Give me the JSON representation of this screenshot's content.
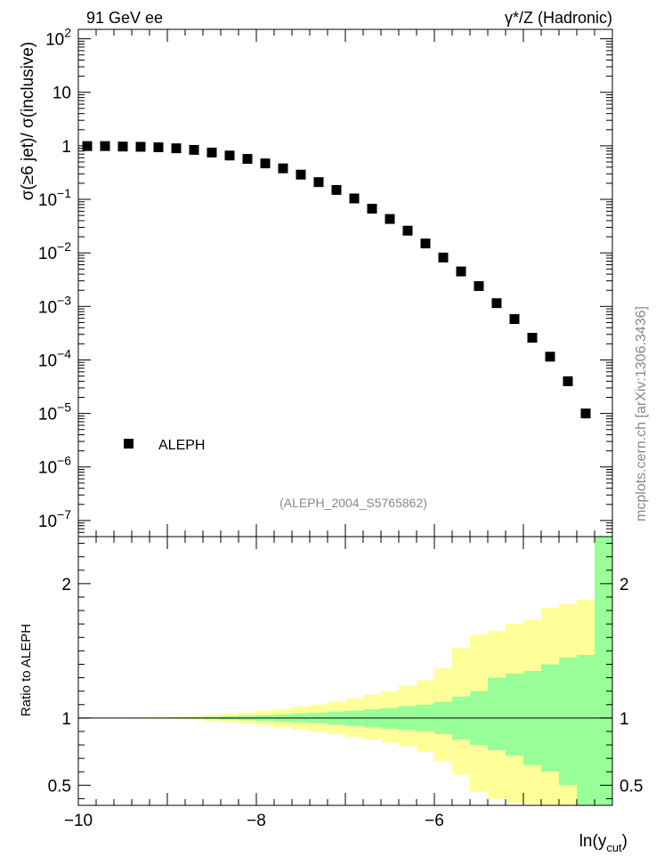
{
  "header": {
    "left_label": "91 GeV ee",
    "right_label": "γ*/Z (Hadronic)"
  },
  "side_label": "mcplots.cern.ch [arXiv:1306.3436]",
  "analysis_ref": "(ALEPH_2004_S5765862)",
  "chart_data": [
    {
      "type": "scatter",
      "panel": "main",
      "ylabel": "σ(≥6 jet)/ σ(inclusive)",
      "yscale": "log",
      "ylim": [
        5e-08,
        150
      ],
      "xlim": [
        -10.0,
        -4.0
      ],
      "ytick_labels": [
        {
          "base": "10",
          "exp": "−7",
          "value": 1e-07
        },
        {
          "base": "10",
          "exp": "−6",
          "value": 1e-06
        },
        {
          "base": "10",
          "exp": "−5",
          "value": 1e-05
        },
        {
          "base": "10",
          "exp": "−4",
          "value": 0.0001
        },
        {
          "base": "10",
          "exp": "−3",
          "value": 0.001
        },
        {
          "base": "10",
          "exp": "−2",
          "value": 0.01
        },
        {
          "base": "10",
          "exp": "−1",
          "value": 0.1
        },
        {
          "base": "1",
          "exp": "",
          "value": 1
        },
        {
          "base": "10",
          "exp": "",
          "value": 10
        },
        {
          "base": "10",
          "exp": "2",
          "value": 100
        }
      ],
      "legend": {
        "position": "bottom-left",
        "entries": [
          "ALEPH"
        ]
      },
      "series": [
        {
          "name": "ALEPH",
          "marker": "square",
          "color": "#000000",
          "x": [
            -9.9,
            -9.7,
            -9.5,
            -9.3,
            -9.1,
            -8.9,
            -8.7,
            -8.5,
            -8.3,
            -8.1,
            -7.9,
            -7.7,
            -7.5,
            -7.3,
            -7.1,
            -6.9,
            -6.7,
            -6.5,
            -6.3,
            -6.1,
            -5.9,
            -5.7,
            -5.5,
            -5.3,
            -5.1,
            -4.9,
            -4.7,
            -4.5,
            -4.3
          ],
          "y": [
            0.99,
            0.99,
            0.97,
            0.96,
            0.94,
            0.9,
            0.84,
            0.75,
            0.66,
            0.57,
            0.47,
            0.38,
            0.29,
            0.21,
            0.15,
            0.104,
            0.067,
            0.043,
            0.026,
            0.015,
            0.0082,
            0.0045,
            0.0024,
            0.00115,
            0.00058,
            0.00026,
            0.000115,
            4e-05,
            1e-05
          ]
        }
      ]
    },
    {
      "type": "area",
      "panel": "ratio",
      "ylabel": "Ratio to ALEPH",
      "xlabel": "ln(y_cut)",
      "xlabel_base": "ln(y",
      "xlabel_sub": "cut",
      "xlabel_close": ")",
      "ylim": [
        0.35,
        2.35
      ],
      "xlim": [
        -10.0,
        -4.0
      ],
      "xtick_labels": [
        {
          "label": "−10",
          "value": -10
        },
        {
          "label": "−8",
          "value": -8
        },
        {
          "label": "−6",
          "value": -6
        }
      ],
      "ytick_labels": [
        {
          "label": "0.5",
          "value": 0.5
        },
        {
          "label": "1",
          "value": 1
        },
        {
          "label": "2",
          "value": 2
        }
      ],
      "reference_line": 1,
      "bin_edges": [
        -10.0,
        -9.8,
        -9.6,
        -9.4,
        -9.2,
        -9.0,
        -8.8,
        -8.6,
        -8.4,
        -8.2,
        -8.0,
        -7.8,
        -7.6,
        -7.4,
        -7.2,
        -7.0,
        -6.8,
        -6.6,
        -6.4,
        -6.2,
        -6.0,
        -5.8,
        -5.6,
        -5.4,
        -5.2,
        -5.0,
        -4.8,
        -4.6,
        -4.4,
        -4.2
      ],
      "bands": [
        {
          "name": "total",
          "color": "#ffff99",
          "upper": [
            1.002,
            1.002,
            1.003,
            1.004,
            1.006,
            1.008,
            1.012,
            1.022,
            1.032,
            1.042,
            1.055,
            1.068,
            1.085,
            1.1,
            1.12,
            1.145,
            1.175,
            1.2,
            1.24,
            1.28,
            1.37,
            1.52,
            1.62,
            1.65,
            1.7,
            1.73,
            1.82,
            1.85,
            1.88,
            2.35
          ],
          "lower": [
            0.998,
            0.998,
            0.997,
            0.996,
            0.994,
            0.992,
            0.988,
            0.978,
            0.968,
            0.958,
            0.945,
            0.932,
            0.915,
            0.9,
            0.88,
            0.86,
            0.84,
            0.815,
            0.79,
            0.75,
            0.68,
            0.58,
            0.45,
            0.4,
            0.37,
            0.36,
            0.35,
            0.35,
            0.35,
            0.35
          ]
        },
        {
          "name": "stat",
          "color": "#99ff99",
          "upper": [
            1.001,
            1.001,
            1.002,
            1.002,
            1.003,
            1.004,
            1.005,
            1.008,
            1.012,
            1.018,
            1.022,
            1.028,
            1.035,
            1.04,
            1.048,
            1.055,
            1.065,
            1.075,
            1.09,
            1.1,
            1.12,
            1.16,
            1.2,
            1.3,
            1.33,
            1.35,
            1.4,
            1.45,
            1.47,
            2.35
          ],
          "lower": [
            0.999,
            0.999,
            0.998,
            0.998,
            0.997,
            0.996,
            0.995,
            0.992,
            0.988,
            0.982,
            0.978,
            0.972,
            0.965,
            0.96,
            0.95,
            0.94,
            0.93,
            0.92,
            0.91,
            0.9,
            0.88,
            0.84,
            0.8,
            0.76,
            0.72,
            0.65,
            0.6,
            0.5,
            0.35,
            0.35
          ]
        }
      ]
    }
  ]
}
